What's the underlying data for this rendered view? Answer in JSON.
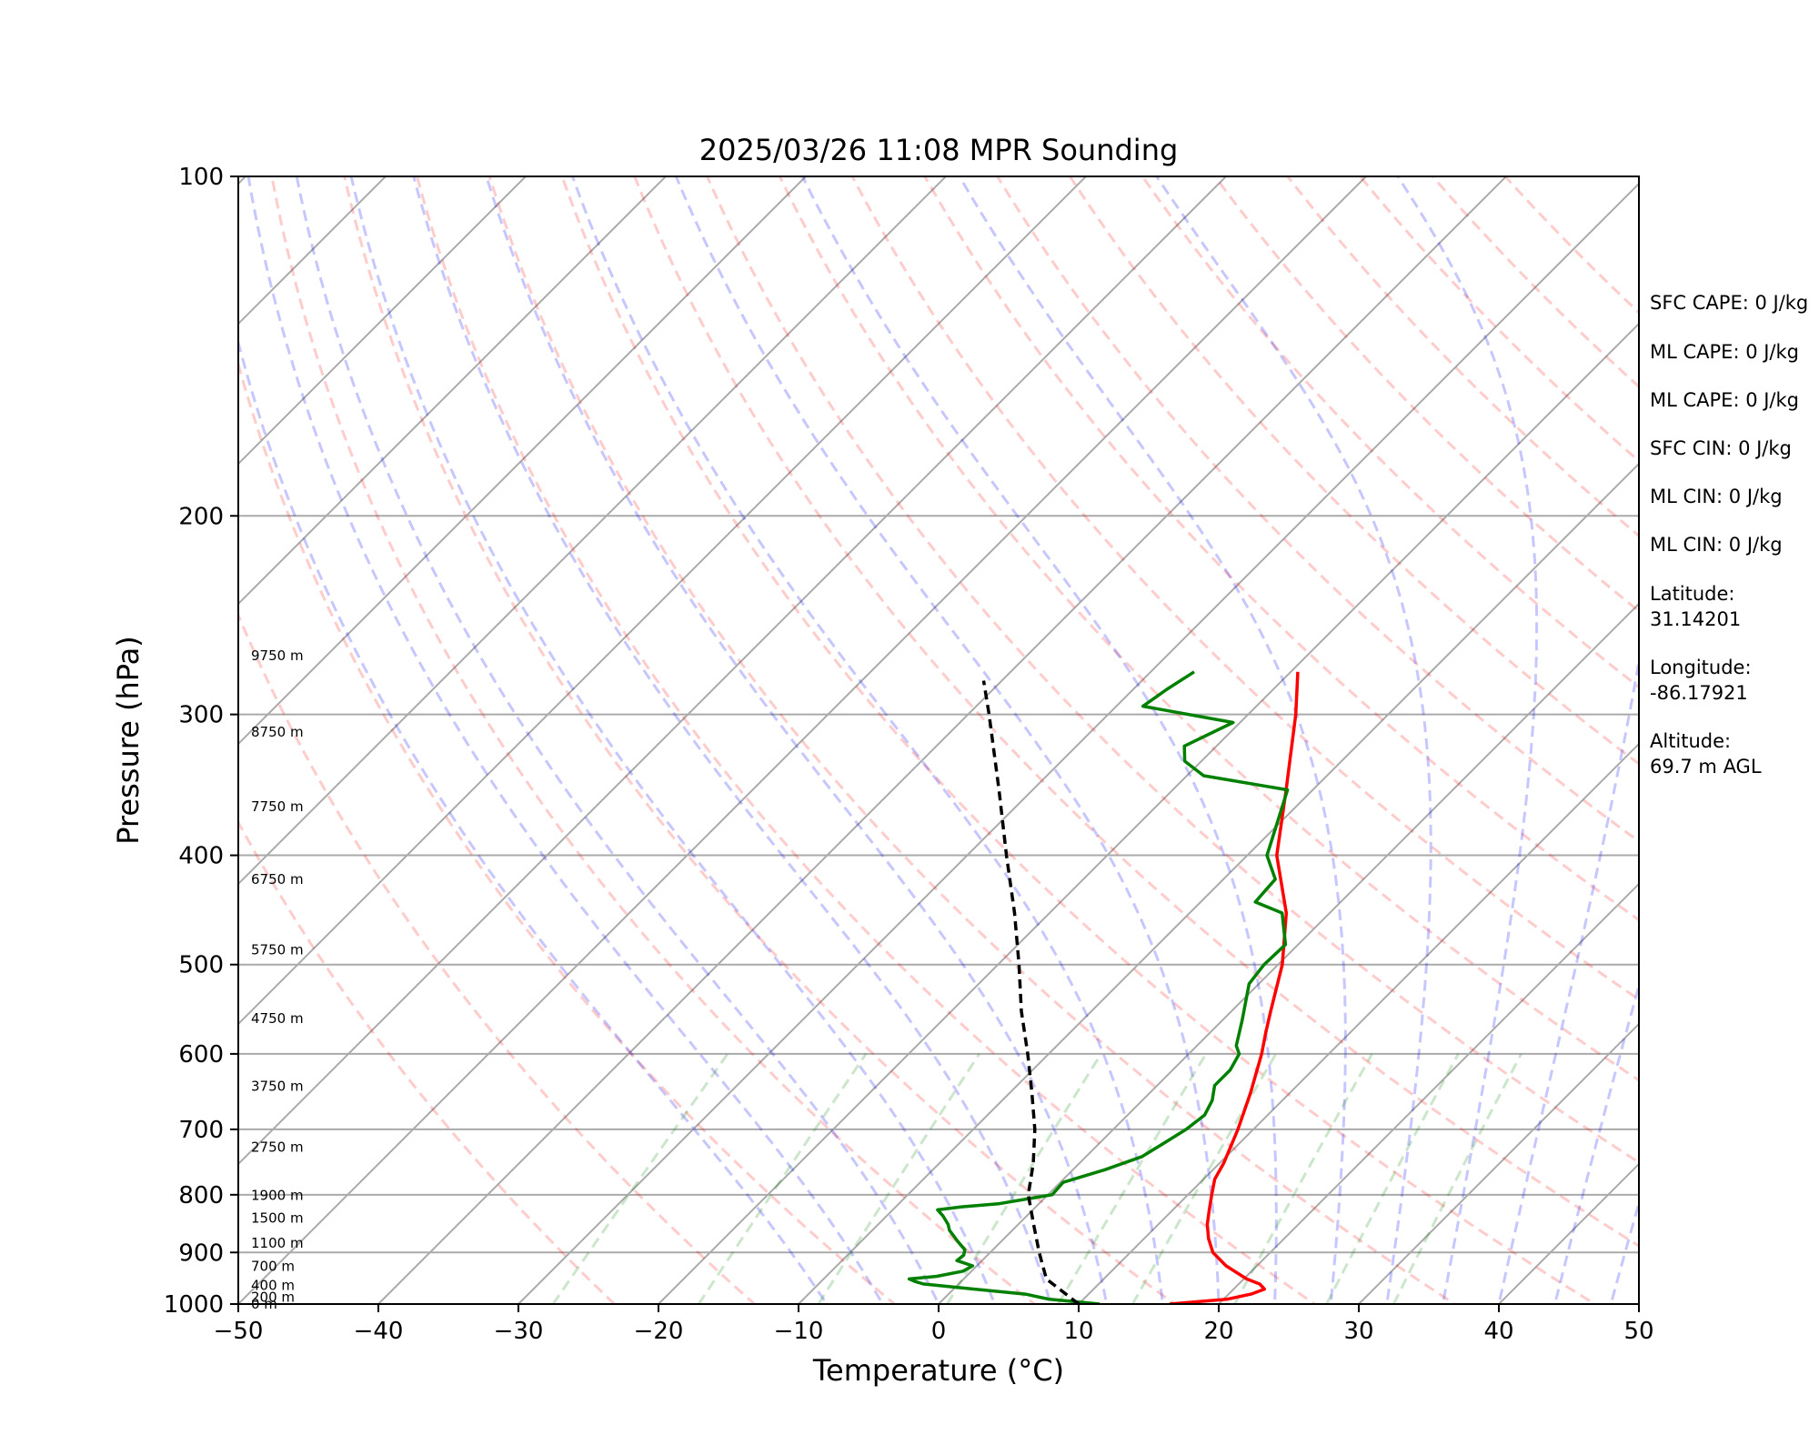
{
  "chart_data": {
    "type": "line",
    "title": "2025/03/26 11:08 MPR Sounding",
    "xlabel": "Temperature (°C)",
    "ylabel": "Pressure (hPa)",
    "xlim": [
      -50,
      50
    ],
    "ylim": [
      1000,
      100
    ],
    "y_scale": "log",
    "x_ticks": [
      -50,
      -40,
      -30,
      -20,
      -10,
      0,
      10,
      20,
      30,
      40,
      50
    ],
    "y_ticks": [
      100,
      200,
      300,
      400,
      500,
      600,
      700,
      800,
      900,
      1000
    ],
    "grid": true,
    "skew_isotherms": [
      -150,
      -140,
      -130,
      -120,
      -110,
      -100,
      -90,
      -80,
      -70,
      -60,
      -50,
      -40,
      -30,
      -20,
      -10,
      0,
      10,
      20,
      30,
      40,
      50
    ],
    "dry_adiabats_theta_k": [
      250,
      260,
      270,
      280,
      290,
      300,
      310,
      320,
      330,
      340,
      350,
      360,
      370,
      380,
      390,
      400,
      410,
      420,
      430,
      440,
      450
    ],
    "moist_adiabats_t_c": [
      -8,
      -4,
      0,
      4,
      8,
      12,
      16,
      20,
      24,
      28,
      32,
      36,
      40,
      44,
      48
    ],
    "mixing_ratio_lines": [
      0.4,
      1,
      2,
      4,
      7,
      10,
      16,
      24,
      32
    ],
    "series": [
      {
        "name": "",
        "kind": "temperature",
        "color": "#ff0000",
        "points": [
          [
            1000,
            16.5
          ],
          [
            990,
            20.3
          ],
          [
            980,
            21.6
          ],
          [
            970,
            22.2
          ],
          [
            960,
            21.5
          ],
          [
            950,
            20.2
          ],
          [
            925,
            17.8
          ],
          [
            900,
            15.9
          ],
          [
            875,
            14.6
          ],
          [
            850,
            13.5
          ],
          [
            825,
            12.6
          ],
          [
            800,
            11.7
          ],
          [
            775,
            10.8
          ],
          [
            750,
            10.3
          ],
          [
            700,
            8.9
          ],
          [
            650,
            7.2
          ],
          [
            600,
            5.2
          ],
          [
            575,
            4.0
          ],
          [
            550,
            2.8
          ],
          [
            500,
            0.3
          ],
          [
            450,
            -3.1
          ],
          [
            400,
            -7.9
          ],
          [
            350,
            -11.9
          ],
          [
            300,
            -16.6
          ],
          [
            280,
            -18.9
          ],
          [
            275,
            -19.5
          ]
        ]
      },
      {
        "name": "",
        "kind": "dewpoint",
        "color": "#008000",
        "points": [
          [
            1000,
            11.5
          ],
          [
            990,
            7.5
          ],
          [
            980,
            5.5
          ],
          [
            970,
            1.5
          ],
          [
            960,
            -2.5
          ],
          [
            955,
            -3.3
          ],
          [
            950,
            -3.9
          ],
          [
            945,
            -2.1
          ],
          [
            935,
            -0.6
          ],
          [
            925,
            -0.3
          ],
          [
            915,
            -1.8
          ],
          [
            905,
            -1.7
          ],
          [
            895,
            -2.0
          ],
          [
            880,
            -3.1
          ],
          [
            860,
            -4.5
          ],
          [
            850,
            -5.0
          ],
          [
            835,
            -6.0
          ],
          [
            825,
            -6.8
          ],
          [
            820,
            -5.3
          ],
          [
            815,
            -2.9
          ],
          [
            800,
            0.3
          ],
          [
            780,
            0.2
          ],
          [
            760,
            2.3
          ],
          [
            740,
            4.0
          ],
          [
            720,
            4.6
          ],
          [
            700,
            5.2
          ],
          [
            680,
            5.5
          ],
          [
            660,
            5.0
          ],
          [
            640,
            4.1
          ],
          [
            620,
            4.1
          ],
          [
            600,
            3.6
          ],
          [
            590,
            2.8
          ],
          [
            560,
            1.4
          ],
          [
            520,
            -0.7
          ],
          [
            500,
            -1.0
          ],
          [
            480,
            -0.9
          ],
          [
            450,
            -3.4
          ],
          [
            440,
            -6.1
          ],
          [
            420,
            -6.3
          ],
          [
            400,
            -8.6
          ],
          [
            390,
            -9.2
          ],
          [
            350,
            -11.8
          ],
          [
            340,
            -18.8
          ],
          [
            330,
            -21.2
          ],
          [
            320,
            -22.3
          ],
          [
            305,
            -20.5
          ],
          [
            295,
            -28.1
          ],
          [
            285,
            -27.6
          ],
          [
            275,
            -26.9
          ]
        ]
      },
      {
        "name": "",
        "kind": "parcel",
        "color": "#000000",
        "points": [
          [
            1000,
            10.0
          ],
          [
            950,
            5.9
          ],
          [
            900,
            3.5
          ],
          [
            850,
            1.1
          ],
          [
            800,
            -1.4
          ],
          [
            750,
            -3.3
          ],
          [
            700,
            -5.6
          ],
          [
            650,
            -8.4
          ],
          [
            600,
            -11.5
          ],
          [
            550,
            -15.0
          ],
          [
            500,
            -18.5
          ],
          [
            450,
            -22.5
          ],
          [
            400,
            -27.2
          ],
          [
            350,
            -32.4
          ],
          [
            300,
            -38.5
          ],
          [
            280,
            -41.3
          ]
        ]
      }
    ],
    "height_labels": [
      {
        "p": 1000,
        "text": "0 m"
      },
      {
        "p": 986,
        "text": "200 m"
      },
      {
        "p": 963,
        "text": "400 m"
      },
      {
        "p": 926,
        "text": "700 m"
      },
      {
        "p": 883,
        "text": "1100 m"
      },
      {
        "p": 839,
        "text": "1500 m"
      },
      {
        "p": 801,
        "text": "1900 m"
      },
      {
        "p": 726,
        "text": "2750 m"
      },
      {
        "p": 641,
        "text": "3750 m"
      },
      {
        "p": 558,
        "text": "4750 m"
      },
      {
        "p": 485,
        "text": "5750 m"
      },
      {
        "p": 420,
        "text": "6750 m"
      },
      {
        "p": 362,
        "text": "7750 m"
      },
      {
        "p": 311,
        "text": "8750 m"
      },
      {
        "p": 266,
        "text": "9750 m"
      }
    ],
    "info_lines": [
      "SFC CAPE: 0 J/kg",
      "ML CAPE: 0 J/kg",
      "ML CAPE: 0 J/kg",
      "SFC CIN: 0 J/kg",
      "ML CIN: 0 J/kg",
      "ML CIN: 0 J/kg",
      "Latitude:",
      "31.14201",
      "Longitude:",
      "-86.17921",
      "Altitude:",
      "69.7 m AGL"
    ]
  }
}
